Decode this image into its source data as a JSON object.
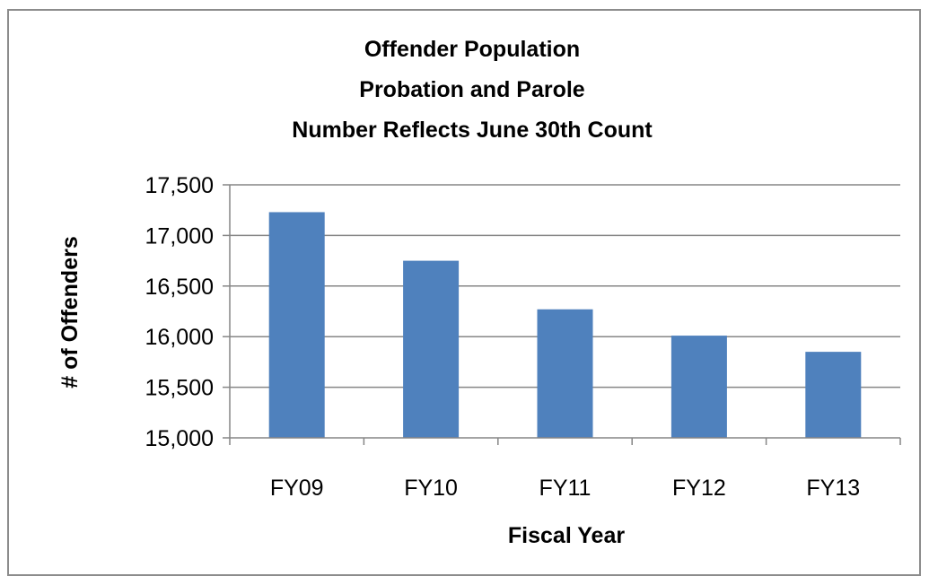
{
  "chart_data": {
    "type": "bar",
    "title_lines": [
      "Offender Population",
      "Probation and Parole",
      "Number Reflects June 30th Count"
    ],
    "xlabel": "Fiscal Year",
    "ylabel": "# of Offenders",
    "categories": [
      "FY09",
      "FY10",
      "FY11",
      "FY12",
      "FY13"
    ],
    "values": [
      17230,
      16750,
      16270,
      16010,
      15850
    ],
    "ylim": [
      15000,
      17500
    ],
    "yticks": [
      15000,
      15500,
      16000,
      16500,
      17000,
      17500
    ],
    "ytick_labels": [
      "15,000",
      "15,500",
      "16,000",
      "16,500",
      "17,000",
      "17,500"
    ],
    "grid": true,
    "legend": "none",
    "bar_color": "#4f81bd",
    "grid_color": "#868686"
  }
}
